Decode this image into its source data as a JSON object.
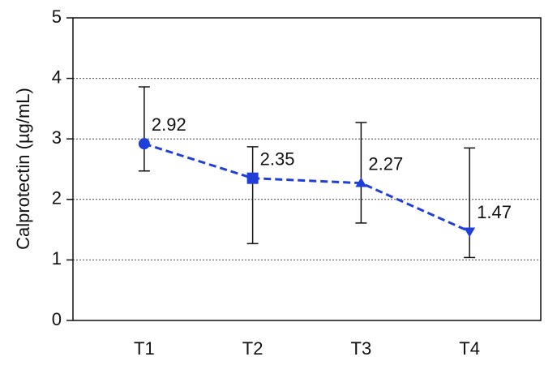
{
  "chart_data": {
    "type": "line",
    "y_label": "Calprotectin (µg/mL)",
    "categories": [
      "T1",
      "T2",
      "T3",
      "T4"
    ],
    "series": [
      {
        "color": "#1f3fd8",
        "linestyle": "dashed",
        "markers": [
          "circle",
          "square",
          "triangle-up",
          "triangle-down"
        ],
        "values": [
          2.92,
          2.35,
          2.27,
          1.47
        ],
        "upper": [
          3.86,
          2.87,
          3.27,
          2.85
        ],
        "lower": [
          2.47,
          1.27,
          1.61,
          1.04
        ]
      }
    ],
    "ylim": [
      0,
      5
    ],
    "yticks": [
      0,
      1,
      2,
      3,
      4,
      5
    ],
    "grid": true
  }
}
